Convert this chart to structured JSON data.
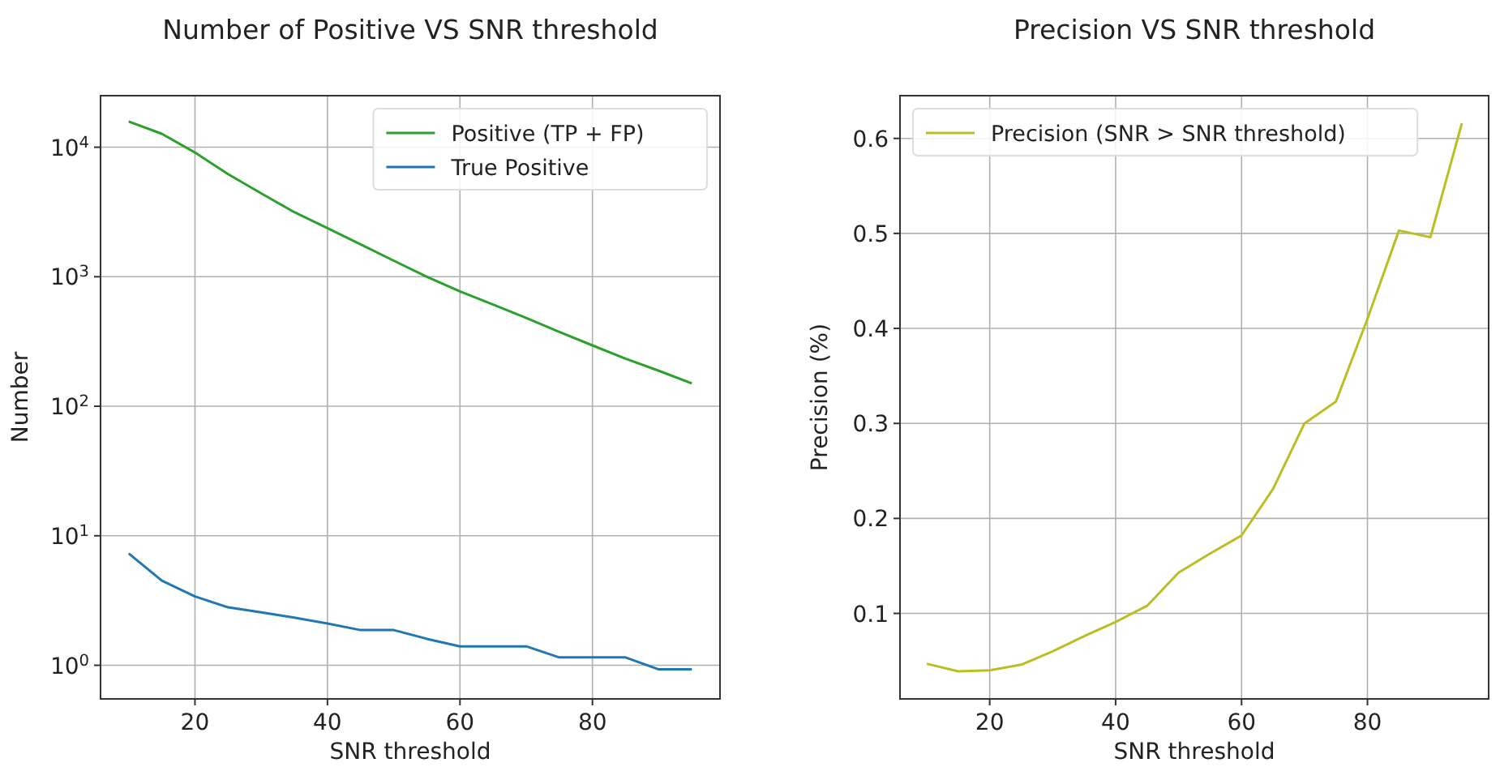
{
  "chart_data": [
    {
      "type": "line",
      "title": "Number of Positive VS SNR threshold",
      "xlabel": "SNR threshold",
      "ylabel": "Number",
      "x": [
        10,
        15,
        20,
        25,
        30,
        35,
        40,
        45,
        50,
        55,
        60,
        65,
        70,
        75,
        80,
        85,
        90,
        95
      ],
      "series": [
        {
          "name": "Positive (TP + FP)",
          "color": "#2ca02c",
          "values": [
            15800,
            12700,
            9100,
            6200,
            4400,
            3150,
            2370,
            1780,
            1330,
            1000,
            770,
            610,
            480,
            375,
            295,
            233,
            188,
            150
          ]
        },
        {
          "name": "True Positive",
          "color": "#1f77b4",
          "values": [
            7.3,
            4.5,
            3.4,
            2.8,
            2.56,
            2.33,
            2.1,
            1.87,
            1.87,
            1.6,
            1.4,
            1.4,
            1.4,
            1.15,
            1.15,
            1.15,
            0.93,
            0.93
          ]
        }
      ],
      "log": "y",
      "xlim": [
        5.75,
        99.25
      ],
      "ylim": [
        0.55,
        25000
      ],
      "xticks": [
        20,
        40,
        60,
        80
      ],
      "yticks": [
        {
          "value": 1,
          "label": "10$^{0}$"
        },
        {
          "value": 10,
          "label": "10$^{1}$"
        },
        {
          "value": 100,
          "label": "10$^{2}$"
        },
        {
          "value": 1000,
          "label": "10$^{3}$"
        },
        {
          "value": 10000,
          "label": "10$^{4}$"
        }
      ],
      "grid": true,
      "legend": "top right"
    },
    {
      "type": "line",
      "title": "Precision VS SNR threshold",
      "xlabel": "SNR threshold",
      "ylabel": "Precision (%)",
      "x": [
        10,
        15,
        20,
        25,
        30,
        35,
        40,
        45,
        50,
        55,
        60,
        65,
        70,
        75,
        80,
        85,
        90,
        95
      ],
      "series": [
        {
          "name": "Precision (SNR > SNR threshold)",
          "color": "#bcbd22",
          "values": [
            0.047,
            0.039,
            0.04,
            0.046,
            0.06,
            0.076,
            0.091,
            0.108,
            0.143,
            0.163,
            0.182,
            0.231,
            0.3,
            0.323,
            0.41,
            0.503,
            0.496,
            0.616
          ]
        }
      ],
      "xlim": [
        5.75,
        99.25
      ],
      "ylim": [
        0.01,
        0.645
      ],
      "xticks": [
        20,
        40,
        60,
        80
      ],
      "yticks": [
        0.1,
        0.2,
        0.3,
        0.4,
        0.5,
        0.6
      ],
      "grid": true,
      "legend": "top left"
    }
  ]
}
